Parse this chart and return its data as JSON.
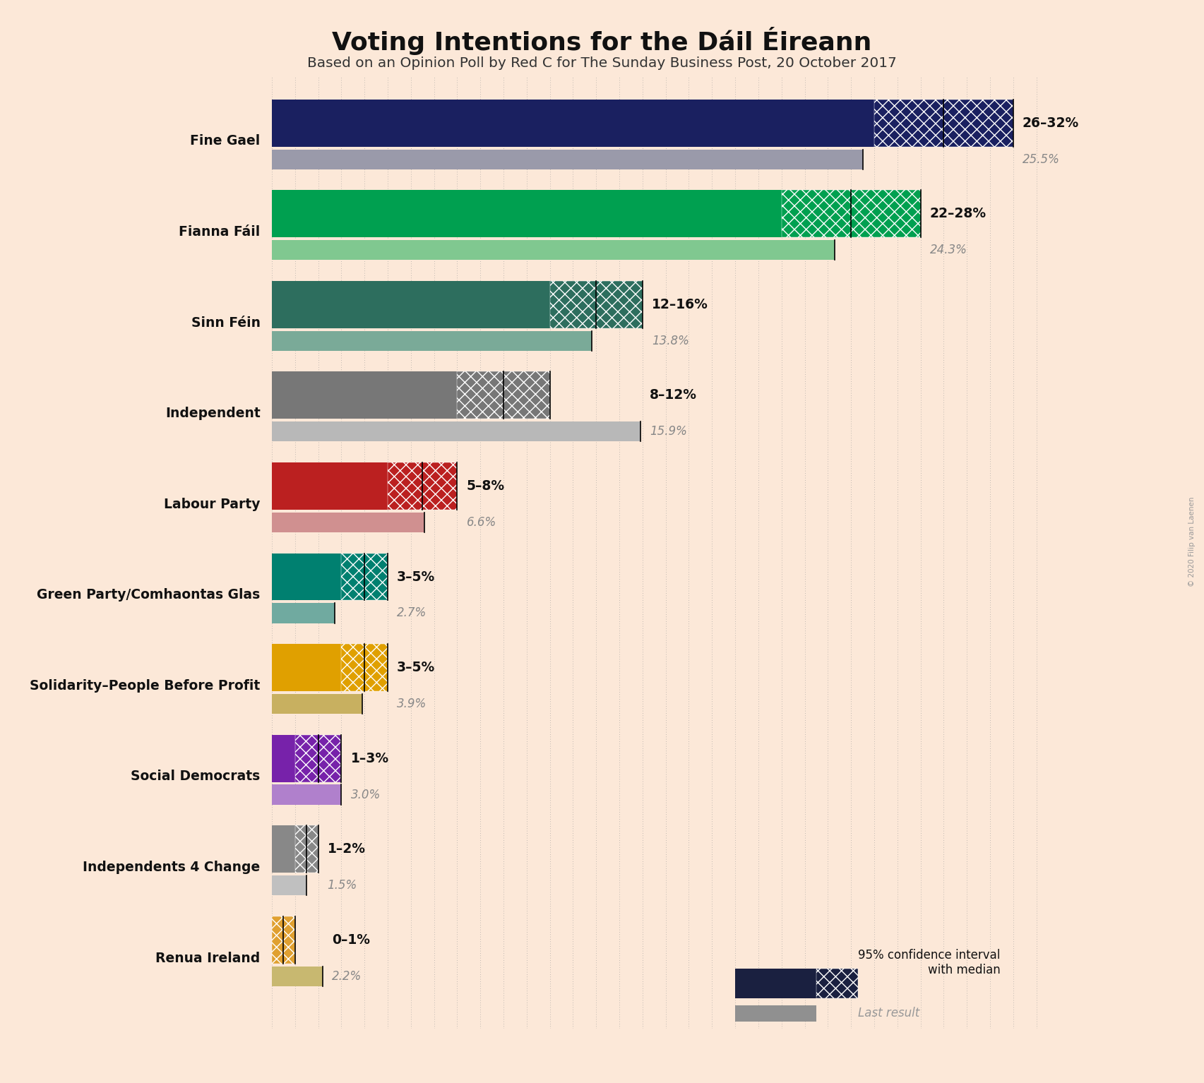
{
  "title": "Voting Intentions for the Dáil Éireann",
  "subtitle": "Based on an Opinion Poll by Red C for The Sunday Business Post, 20 October 2017",
  "copyright": "© 2020 Filip van Laenen",
  "background_color": "#fce8d8",
  "parties": [
    {
      "name": "Fine Gael",
      "ci_low": 26,
      "ci_high": 32,
      "median": 29,
      "last_result": 25.5,
      "label": "26–32%",
      "last_label": "25.5%",
      "color": "#1a2060",
      "last_color": "#9a9aaa"
    },
    {
      "name": "Fianna Fáil",
      "ci_low": 22,
      "ci_high": 28,
      "median": 25,
      "last_result": 24.3,
      "label": "22–28%",
      "last_label": "24.3%",
      "color": "#00a050",
      "last_color": "#80c890"
    },
    {
      "name": "Sinn Féin",
      "ci_low": 12,
      "ci_high": 16,
      "median": 14,
      "last_result": 13.8,
      "label": "12–16%",
      "last_label": "13.8%",
      "color": "#2d6e5e",
      "last_color": "#7aaa98"
    },
    {
      "name": "Independent",
      "ci_low": 8,
      "ci_high": 12,
      "median": 10,
      "last_result": 15.9,
      "label": "8–12%",
      "last_label": "15.9%",
      "color": "#777777",
      "last_color": "#b8b8b8"
    },
    {
      "name": "Labour Party",
      "ci_low": 5,
      "ci_high": 8,
      "median": 6.5,
      "last_result": 6.6,
      "label": "5–8%",
      "last_label": "6.6%",
      "color": "#bb2020",
      "last_color": "#d09090"
    },
    {
      "name": "Green Party/Comhaontas Glas",
      "ci_low": 3,
      "ci_high": 5,
      "median": 4,
      "last_result": 2.7,
      "label": "3–5%",
      "last_label": "2.7%",
      "color": "#008070",
      "last_color": "#70aaa0"
    },
    {
      "name": "Solidarity–People Before Profit",
      "ci_low": 3,
      "ci_high": 5,
      "median": 4,
      "last_result": 3.9,
      "label": "3–5%",
      "last_label": "3.9%",
      "color": "#e0a000",
      "last_color": "#c8b060"
    },
    {
      "name": "Social Democrats",
      "ci_low": 1,
      "ci_high": 3,
      "median": 2,
      "last_result": 3.0,
      "label": "1–3%",
      "last_label": "3.0%",
      "color": "#7722aa",
      "last_color": "#b080cc"
    },
    {
      "name": "Independents 4 Change",
      "ci_low": 1,
      "ci_high": 2,
      "median": 1.5,
      "last_result": 1.5,
      "label": "1–2%",
      "last_label": "1.5%",
      "color": "#888888",
      "last_color": "#c0c0c0"
    },
    {
      "name": "Renua Ireland",
      "ci_low": 0,
      "ci_high": 1,
      "median": 0.5,
      "last_result": 2.2,
      "label": "0–1%",
      "last_label": "2.2%",
      "color": "#e0a030",
      "last_color": "#c8b870"
    }
  ],
  "xlim": [
    0,
    34
  ],
  "legend_dark_color": "#1a2040",
  "legend_last_color": "#909090"
}
